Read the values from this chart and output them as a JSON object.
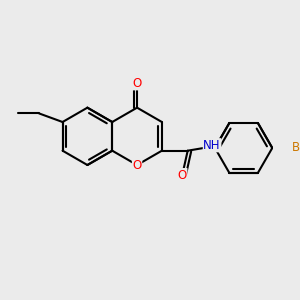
{
  "bg_color": "#ebebeb",
  "bond_color": "#000000",
  "bond_width": 1.5,
  "atom_colors": {
    "O": "#ff0000",
    "N": "#0000cd",
    "Br": "#cc7700",
    "C": "#000000"
  },
  "font_size_atom": 8.5
}
